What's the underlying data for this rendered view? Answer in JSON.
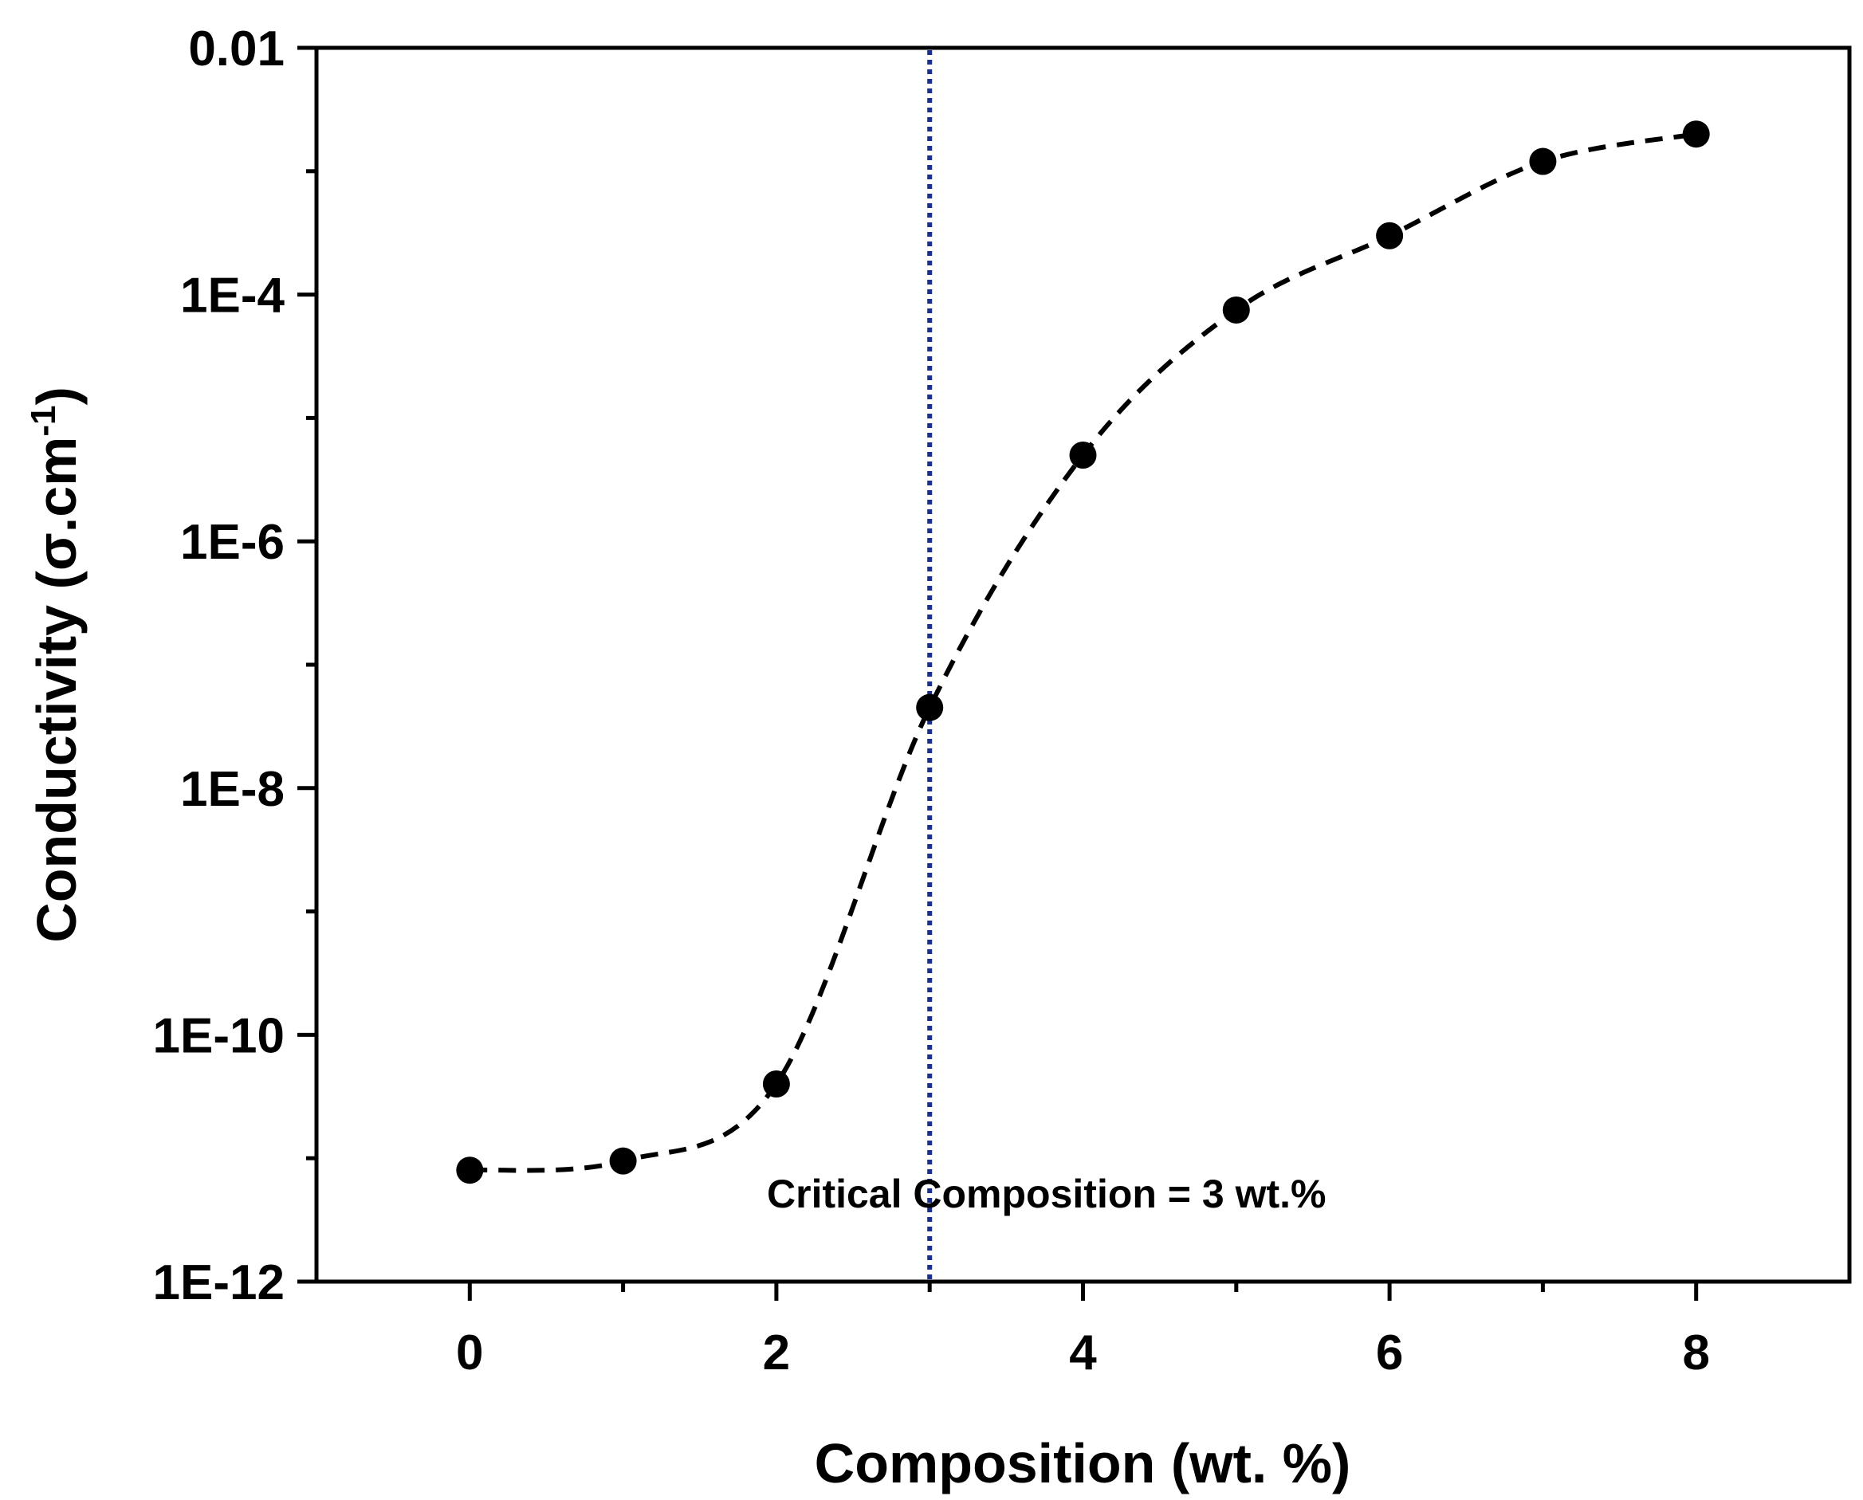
{
  "chart_data": {
    "type": "line",
    "title": "",
    "xlabel": "Composition (wt. %)",
    "ylabel_main": "Conductivity (σ.cm",
    "ylabel_sup": "-1",
    "ylabel_close": ")",
    "xlim": [
      -1,
      9
    ],
    "ylim": [
      1e-12,
      0.01
    ],
    "yscale": "log",
    "x_ticks": [
      0,
      2,
      4,
      6,
      8
    ],
    "x_tick_labels": [
      "0",
      "2",
      "4",
      "6",
      "8"
    ],
    "y_ticks": [
      1e-12,
      1e-10,
      1e-08,
      1e-06,
      0.0001,
      0.01
    ],
    "y_tick_labels": [
      "1E-12",
      "1E-10",
      "1E-8",
      "1E-6",
      "1E-4",
      "0.01"
    ],
    "series": [
      {
        "name": "Conductivity",
        "line_style": "dashed",
        "marker": "filled-circle",
        "color": "#000000",
        "x": [
          0,
          1,
          2,
          3,
          4,
          5,
          6,
          7,
          8
        ],
        "y": [
          8e-12,
          9.5e-12,
          4e-11,
          4.5e-08,
          5e-06,
          7.5e-05,
          0.0003,
          0.0012,
          0.002
        ]
      }
    ],
    "reference_line": {
      "x": 3,
      "style": "dotted",
      "color": "#1a2e8c"
    },
    "annotation": {
      "text": "Critical Composition = 3 wt.%",
      "x": 3,
      "y": 1.3e-11
    },
    "grid": false
  }
}
